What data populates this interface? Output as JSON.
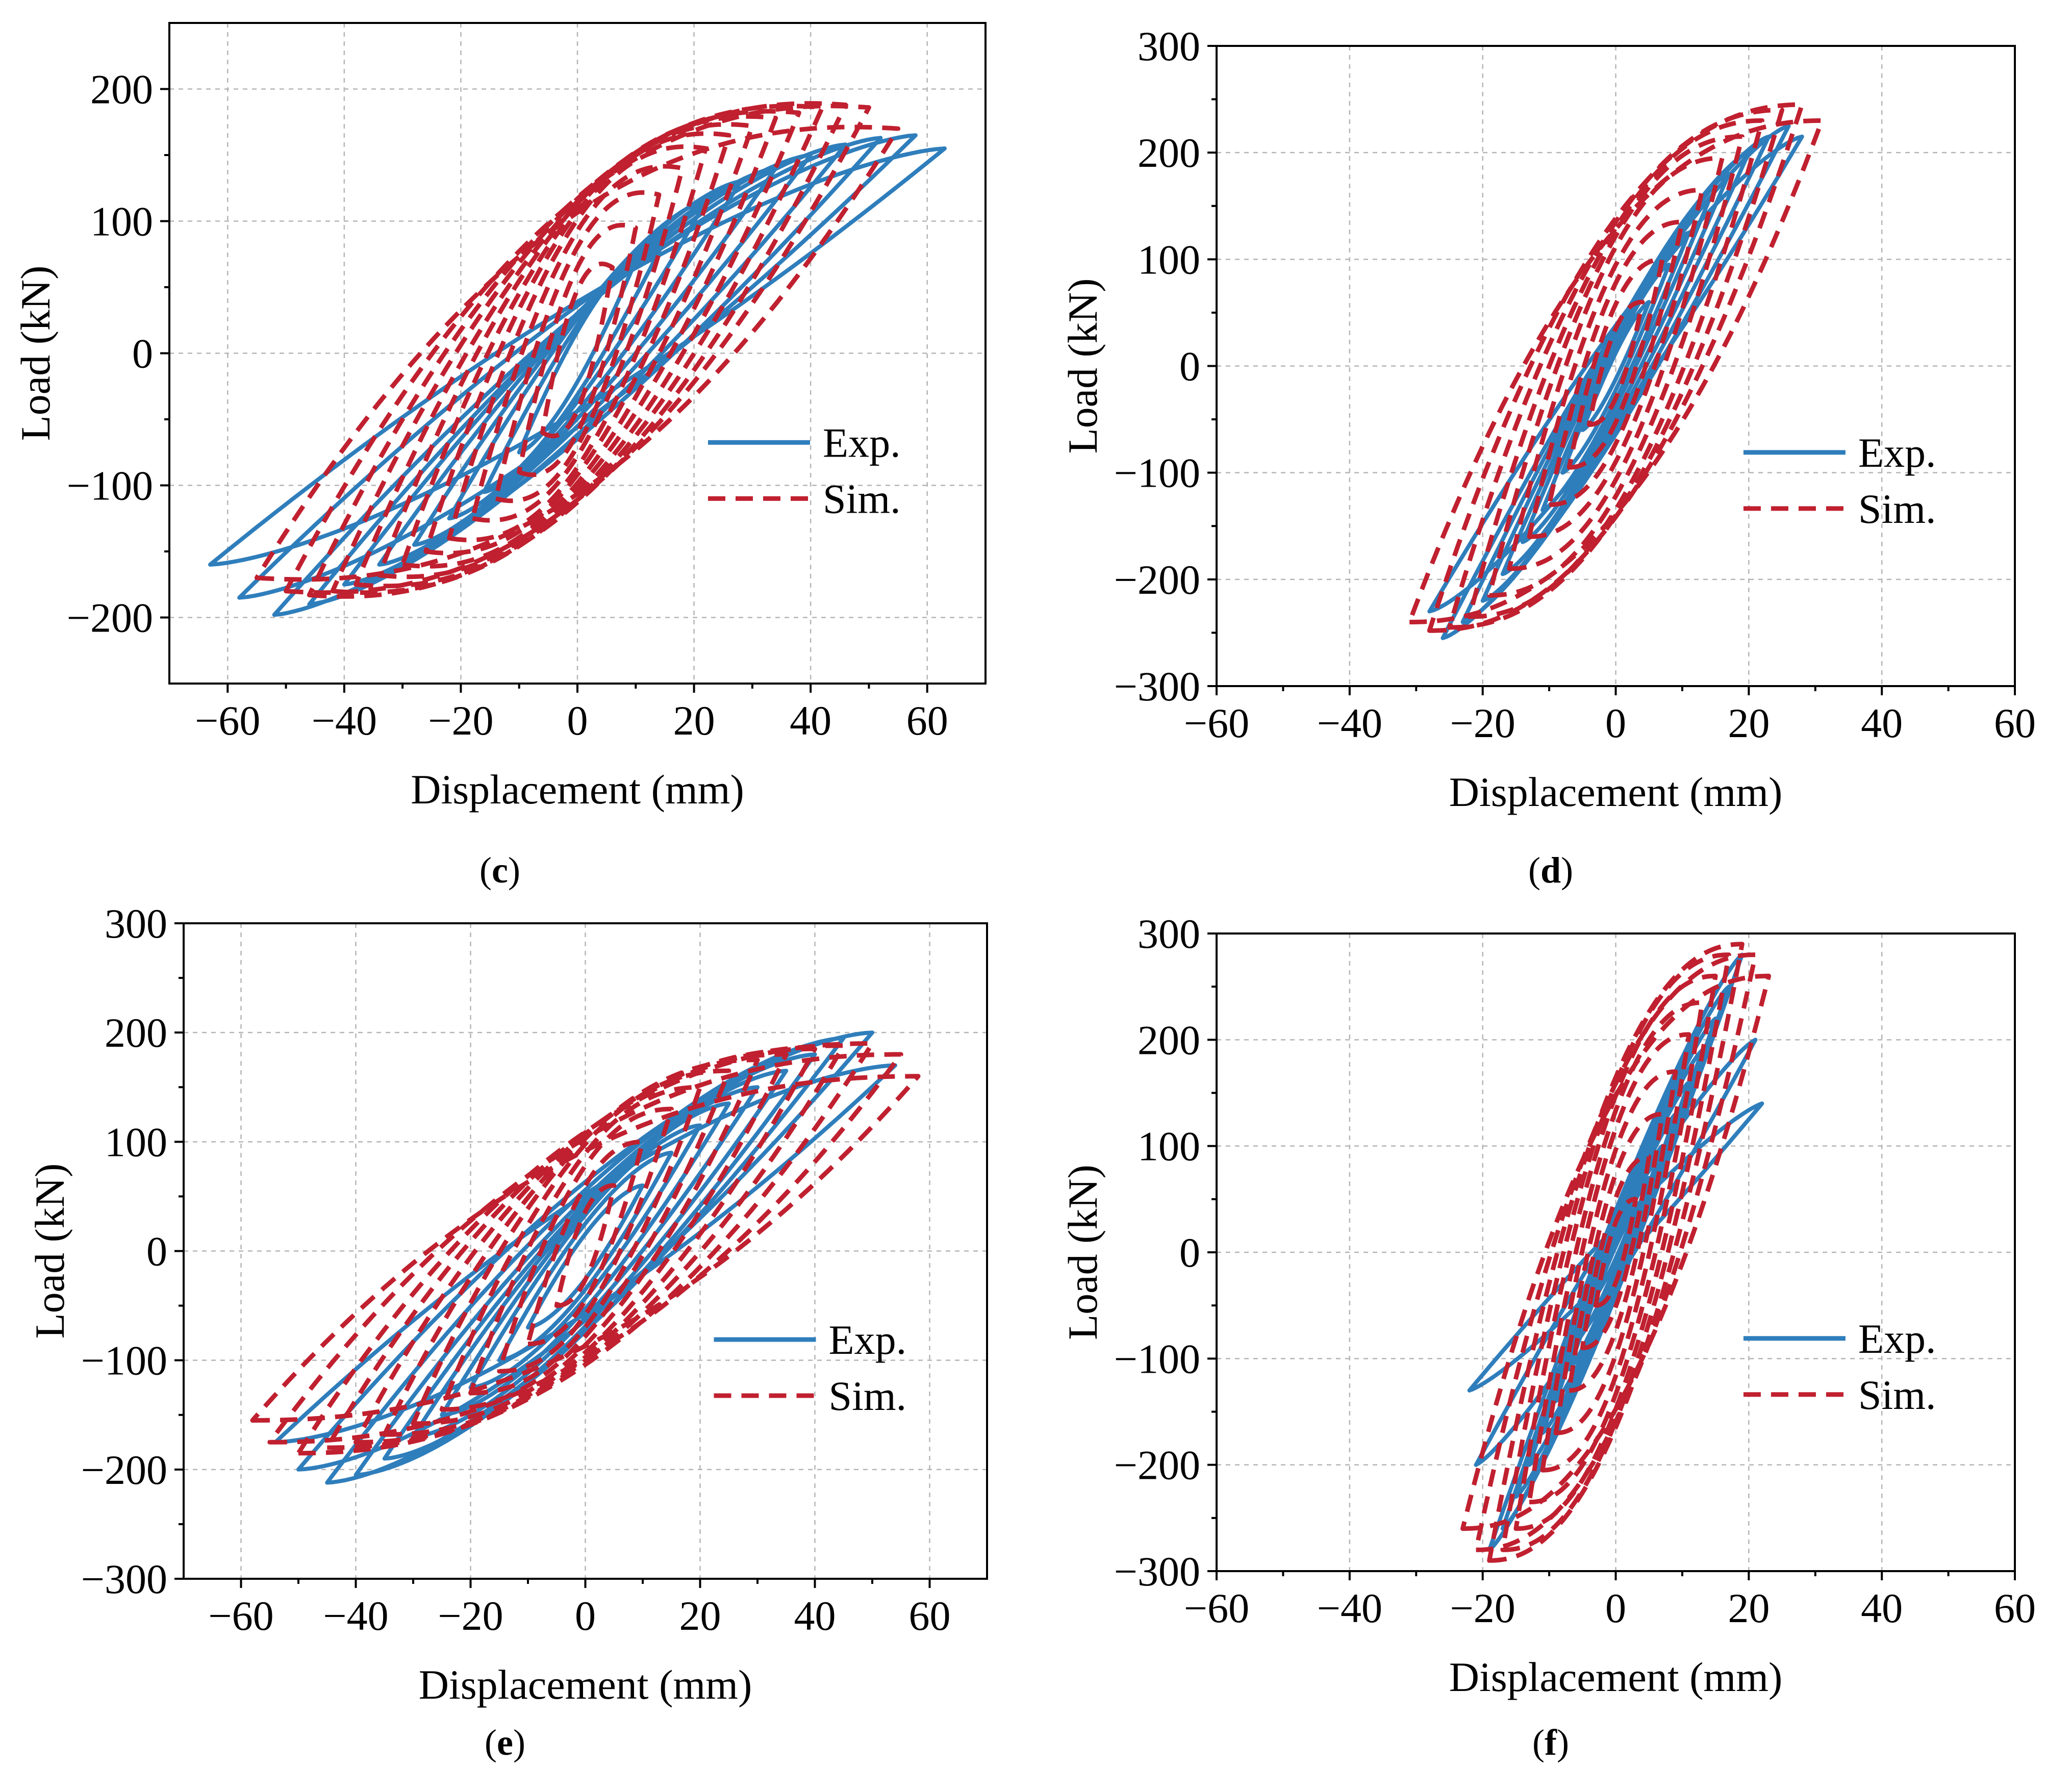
{
  "colors": {
    "exp": "#2f7ebc",
    "sim": "#c0202f"
  },
  "chart_data": [
    {
      "type": "line",
      "panel": "c",
      "caption": "(c)",
      "xlabel": "Displacement (mm)",
      "ylabel": "Load (kN)",
      "xlim": [
        -70,
        70
      ],
      "ylim": [
        -250,
        250
      ],
      "xticks": [
        -60,
        -40,
        -20,
        0,
        20,
        40,
        60
      ],
      "yticks": [
        -200,
        -100,
        0,
        100,
        200
      ],
      "xtick_labels": [
        "−60",
        "−40",
        "−20",
        "0",
        "20",
        "40",
        "60"
      ],
      "ytick_labels": [
        "−200",
        "−100",
        "0",
        "100",
        "200"
      ],
      "grid": true,
      "legend": {
        "position": "center-right",
        "entries": [
          "Exp.",
          "Sim."
        ]
      },
      "series": [
        {
          "name": "Exp.",
          "style": "solid",
          "amplitudes": [
            10,
            16,
            22,
            28,
            34,
            40,
            46,
            52,
            58,
            63
          ],
          "peak_pos": [
            70,
            95,
            115,
            130,
            140,
            150,
            158,
            163,
            165,
            155
          ],
          "peak_neg": [
            -75,
            -105,
            -125,
            -145,
            -160,
            -175,
            -190,
            -198,
            -185,
            -160
          ],
          "pinch": 0.2,
          "neg_ratio": 1.0,
          "offset": 0
        },
        {
          "name": "Sim.",
          "style": "dashed",
          "amplitudes": [
            6,
            10,
            14,
            18,
            22,
            26,
            30,
            34,
            38,
            42,
            46,
            50,
            55
          ],
          "peak_pos": [
            65,
            95,
            120,
            140,
            155,
            165,
            172,
            178,
            182,
            186,
            188,
            186,
            170
          ],
          "peak_neg": [
            -60,
            -90,
            -110,
            -125,
            -140,
            -150,
            -160,
            -168,
            -175,
            -180,
            -183,
            -180,
            -170
          ],
          "pinch": 0.55,
          "neg_ratio": 0.8,
          "offset": -10
        }
      ]
    },
    {
      "type": "line",
      "panel": "d",
      "caption": "(d)",
      "xlabel": "Displacement (mm)",
      "ylabel": "Load (kN)",
      "xlim": [
        -60,
        60
      ],
      "ylim": [
        -300,
        300
      ],
      "xticks": [
        -60,
        -40,
        -20,
        0,
        20,
        40,
        60
      ],
      "yticks": [
        -300,
        -200,
        -100,
        0,
        100,
        200,
        300
      ],
      "xtick_labels": [
        "−60",
        "−40",
        "−20",
        "0",
        "20",
        "40",
        "60"
      ],
      "ytick_labels": [
        "−300",
        "−200",
        "−100",
        "0",
        "100",
        "200",
        "300"
      ],
      "grid": true,
      "legend": {
        "position": "center-right",
        "entries": [
          "Exp.",
          "Sim."
        ]
      },
      "series": [
        {
          "name": "Exp.",
          "style": "solid",
          "amplitudes": [
            5,
            8,
            11,
            14,
            17,
            20,
            23,
            26,
            28
          ],
          "peak_pos": [
            60,
            95,
            125,
            155,
            180,
            200,
            215,
            225,
            215
          ],
          "peak_neg": [
            -60,
            -100,
            -135,
            -165,
            -195,
            -220,
            -240,
            -255,
            -230
          ],
          "pinch": 0.15,
          "neg_ratio": 1.0,
          "offset": 0
        },
        {
          "name": "Sim.",
          "style": "dashed",
          "amplitudes": [
            4,
            7,
            10,
            13,
            16,
            19,
            22,
            25,
            28,
            31
          ],
          "peak_pos": [
            60,
            100,
            135,
            165,
            195,
            215,
            230,
            240,
            245,
            230
          ],
          "peak_neg": [
            -55,
            -95,
            -130,
            -160,
            -190,
            -215,
            -235,
            -245,
            -248,
            -240
          ],
          "pinch": 0.55,
          "neg_ratio": 0.9,
          "offset": 0
        }
      ]
    },
    {
      "type": "line",
      "panel": "e",
      "caption": "(e)",
      "xlabel": "Displacement (mm)",
      "ylabel": "Load (kN)",
      "xlim": [
        -70,
        70
      ],
      "ylim": [
        -300,
        300
      ],
      "xticks": [
        -60,
        -40,
        -20,
        0,
        20,
        40,
        60
      ],
      "yticks": [
        -300,
        -200,
        -100,
        0,
        100,
        200,
        300
      ],
      "xtick_labels": [
        "−60",
        "−40",
        "−20",
        "0",
        "20",
        "40",
        "60"
      ],
      "ytick_labels": [
        "−300",
        "−200",
        "−100",
        "0",
        "100",
        "200",
        "300"
      ],
      "grid": true,
      "legend": {
        "position": "center-right",
        "entries": [
          "Exp.",
          "Sim."
        ]
      },
      "series": [
        {
          "name": "Exp.",
          "style": "solid",
          "amplitudes": [
            10,
            15,
            20,
            25,
            30,
            35,
            40,
            45,
            50,
            54
          ],
          "peak_pos": [
            60,
            90,
            115,
            135,
            150,
            165,
            180,
            195,
            200,
            170
          ],
          "peak_neg": [
            -70,
            -100,
            -125,
            -150,
            -170,
            -190,
            -205,
            -212,
            -200,
            -175
          ],
          "pinch": 0.25,
          "neg_ratio": 1.0,
          "offset": 0
        },
        {
          "name": "Sim.",
          "style": "dashed",
          "amplitudes": [
            5,
            10,
            15,
            20,
            25,
            30,
            35,
            40,
            45,
            50,
            55,
            58
          ],
          "peak_pos": [
            60,
            100,
            130,
            150,
            165,
            175,
            180,
            185,
            188,
            190,
            180,
            160
          ],
          "peak_neg": [
            -50,
            -85,
            -110,
            -130,
            -145,
            -158,
            -168,
            -175,
            -180,
            -185,
            -175,
            -155
          ],
          "pinch": 0.55,
          "neg_ratio": 0.85,
          "offset": 0
        }
      ]
    },
    {
      "type": "line",
      "panel": "f",
      "caption": "(f)",
      "xlabel": "Displacement (mm)",
      "ylabel": "Load (kN)",
      "xlim": [
        -60,
        60
      ],
      "ylim": [
        -300,
        300
      ],
      "xticks": [
        -60,
        -40,
        -20,
        0,
        20,
        40,
        60
      ],
      "yticks": [
        -300,
        -200,
        -100,
        0,
        100,
        200,
        300
      ],
      "xtick_labels": [
        "−60",
        "−40",
        "−20",
        "0",
        "20",
        "40",
        "60"
      ],
      "ytick_labels": [
        "−300",
        "−200",
        "−100",
        "0",
        "100",
        "200",
        "300"
      ],
      "grid": true,
      "legend": {
        "position": "center-right",
        "entries": [
          "Exp.",
          "Sim."
        ]
      },
      "series": [
        {
          "name": "Exp.",
          "style": "solid",
          "amplitudes": [
            3,
            5,
            7,
            9,
            11,
            13,
            15,
            17,
            19,
            21,
            22
          ],
          "peak_pos": [
            40,
            70,
            100,
            130,
            160,
            190,
            220,
            250,
            280,
            200,
            140
          ],
          "peak_neg": [
            -40,
            -75,
            -110,
            -140,
            -170,
            -200,
            -230,
            -260,
            -280,
            -200,
            -130
          ],
          "pinch": 0.1,
          "neg_ratio": 1.0,
          "offset": 0
        },
        {
          "name": "Sim.",
          "style": "dashed",
          "amplitudes": [
            3,
            5,
            7,
            9,
            11,
            13,
            15,
            17,
            19,
            21,
            23
          ],
          "peak_pos": [
            50,
            90,
            130,
            170,
            205,
            235,
            260,
            280,
            290,
            280,
            260
          ],
          "peak_neg": [
            -50,
            -90,
            -130,
            -170,
            -205,
            -235,
            -260,
            -280,
            -290,
            -280,
            -260
          ],
          "pinch": 0.55,
          "neg_ratio": 0.9,
          "offset": 0
        }
      ]
    }
  ]
}
